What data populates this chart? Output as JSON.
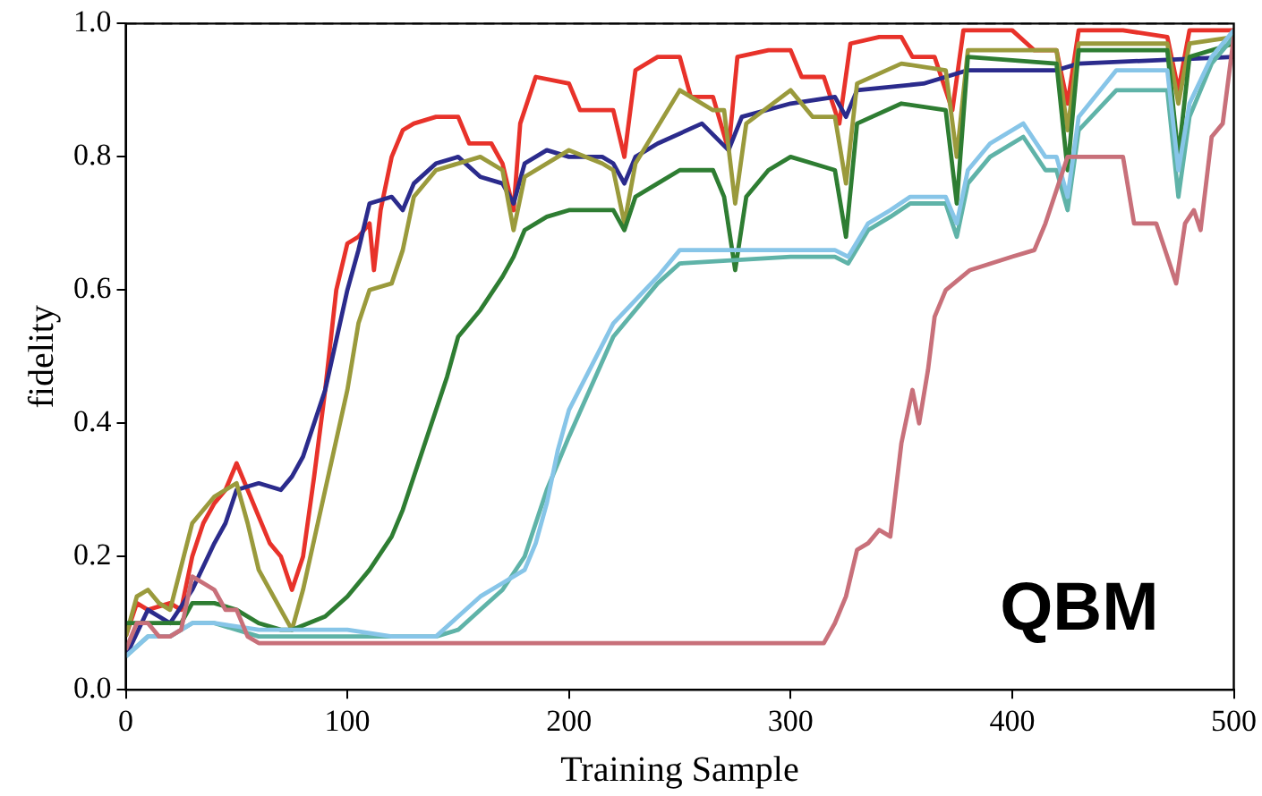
{
  "chart_data": {
    "type": "line",
    "xlabel": "Training Sample",
    "ylabel": "fidelity",
    "xlim": [
      0,
      500
    ],
    "xticks": [
      0,
      100,
      200,
      300,
      400,
      500
    ],
    "ylim": [
      0,
      1
    ],
    "yticks": [
      {
        "value": 0,
        "label": "0.0"
      },
      {
        "value": 0.2,
        "label": "0.2"
      },
      {
        "value": 0.4,
        "label": "0.4"
      },
      {
        "value": 0.6,
        "label": "0.6"
      },
      {
        "value": 0.8,
        "label": "0.8"
      },
      {
        "value": 1,
        "label": "1.0"
      }
    ],
    "grid": false,
    "legend": false,
    "marker": "none",
    "line_style": "solid",
    "annotations": [
      "QBM"
    ],
    "ref_lines": [
      {
        "axis": "y",
        "value": 1,
        "color": "#555555",
        "line_style": "dashed"
      }
    ],
    "series": [
      {
        "color": "#c8707a",
        "x": [
          0,
          5,
          10,
          15,
          20,
          25,
          30,
          35,
          40,
          45,
          50,
          55,
          60,
          100,
          200,
          310,
          315,
          320,
          325,
          330,
          335,
          340,
          345,
          350,
          355,
          358,
          362,
          365,
          370,
          381,
          400,
          410,
          415,
          425,
          444,
          450,
          455,
          465,
          470,
          474,
          478,
          482,
          485,
          490,
          495,
          500
        ],
        "values": [
          0.06,
          0.1,
          0.1,
          0.08,
          0.08,
          0.09,
          0.17,
          0.16,
          0.15,
          0.12,
          0.12,
          0.08,
          0.07,
          0.07,
          0.07,
          0.07,
          0.07,
          0.1,
          0.14,
          0.21,
          0.22,
          0.24,
          0.23,
          0.37,
          0.45,
          0.4,
          0.48,
          0.56,
          0.6,
          0.63,
          0.65,
          0.66,
          0.7,
          0.8,
          0.8,
          0.8,
          0.7,
          0.7,
          0.65,
          0.61,
          0.7,
          0.72,
          0.69,
          0.83,
          0.85,
          0.98
        ]
      },
      {
        "color": "#87c5e8",
        "x": [
          0,
          10,
          20,
          30,
          40,
          60,
          80,
          100,
          120,
          130,
          140,
          150,
          160,
          170,
          180,
          185,
          190,
          195,
          200,
          220,
          240,
          250,
          300,
          320,
          326,
          335,
          345,
          354,
          370,
          375,
          380,
          390,
          405,
          415,
          420,
          425,
          430,
          447,
          470,
          475,
          480,
          490,
          500
        ],
        "values": [
          0.05,
          0.08,
          0.08,
          0.1,
          0.1,
          0.09,
          0.09,
          0.09,
          0.08,
          0.08,
          0.08,
          0.11,
          0.14,
          0.16,
          0.18,
          0.22,
          0.28,
          0.36,
          0.42,
          0.55,
          0.62,
          0.66,
          0.66,
          0.66,
          0.65,
          0.7,
          0.72,
          0.74,
          0.74,
          0.7,
          0.78,
          0.82,
          0.85,
          0.8,
          0.8,
          0.74,
          0.86,
          0.93,
          0.93,
          0.78,
          0.88,
          0.95,
          0.99
        ]
      },
      {
        "color": "#5fb3a8",
        "x": [
          0,
          10,
          20,
          30,
          40,
          60,
          80,
          100,
          120,
          140,
          150,
          160,
          170,
          180,
          190,
          200,
          220,
          240,
          250,
          300,
          320,
          326,
          335,
          345,
          354,
          370,
          375,
          380,
          390,
          405,
          415,
          420,
          425,
          430,
          447,
          470,
          475,
          480,
          490,
          500
        ],
        "values": [
          0.05,
          0.08,
          0.08,
          0.1,
          0.1,
          0.08,
          0.08,
          0.08,
          0.08,
          0.08,
          0.09,
          0.12,
          0.15,
          0.2,
          0.3,
          0.38,
          0.53,
          0.61,
          0.64,
          0.65,
          0.65,
          0.64,
          0.69,
          0.71,
          0.73,
          0.73,
          0.68,
          0.76,
          0.8,
          0.83,
          0.78,
          0.78,
          0.72,
          0.84,
          0.9,
          0.9,
          0.74,
          0.86,
          0.94,
          0.98
        ]
      },
      {
        "color": "#2e7d32",
        "x": [
          0,
          10,
          25,
          30,
          40,
          50,
          60,
          70,
          75,
          90,
          100,
          110,
          120,
          125,
          130,
          140,
          145,
          150,
          160,
          170,
          175,
          180,
          190,
          200,
          215,
          220,
          225,
          230,
          240,
          250,
          265,
          270,
          275,
          280,
          290,
          300,
          310,
          320,
          325,
          330,
          350,
          370,
          375,
          380,
          420,
          425,
          430,
          470,
          475,
          480,
          500
        ],
        "values": [
          0.1,
          0.1,
          0.1,
          0.13,
          0.13,
          0.12,
          0.1,
          0.09,
          0.09,
          0.11,
          0.14,
          0.18,
          0.23,
          0.27,
          0.32,
          0.42,
          0.47,
          0.53,
          0.57,
          0.62,
          0.65,
          0.69,
          0.71,
          0.72,
          0.72,
          0.72,
          0.69,
          0.74,
          0.76,
          0.78,
          0.78,
          0.74,
          0.63,
          0.74,
          0.78,
          0.8,
          0.79,
          0.78,
          0.68,
          0.85,
          0.88,
          0.87,
          0.73,
          0.95,
          0.94,
          0.78,
          0.96,
          0.96,
          0.8,
          0.95,
          0.97
        ]
      },
      {
        "color": "#9a9a3c",
        "x": [
          0,
          5,
          10,
          15,
          20,
          30,
          40,
          45,
          50,
          55,
          60,
          70,
          75,
          80,
          90,
          100,
          105,
          110,
          120,
          125,
          130,
          140,
          160,
          170,
          175,
          180,
          200,
          215,
          220,
          225,
          230,
          250,
          265,
          270,
          275,
          280,
          300,
          310,
          320,
          325,
          330,
          350,
          370,
          375,
          380,
          420,
          425,
          430,
          470,
          475,
          480,
          500
        ],
        "values": [
          0.08,
          0.14,
          0.15,
          0.13,
          0.12,
          0.25,
          0.29,
          0.3,
          0.31,
          0.25,
          0.18,
          0.12,
          0.09,
          0.15,
          0.3,
          0.45,
          0.55,
          0.6,
          0.61,
          0.66,
          0.74,
          0.78,
          0.8,
          0.78,
          0.69,
          0.77,
          0.81,
          0.79,
          0.78,
          0.7,
          0.79,
          0.9,
          0.87,
          0.87,
          0.73,
          0.85,
          0.9,
          0.86,
          0.86,
          0.76,
          0.91,
          0.94,
          0.93,
          0.8,
          0.96,
          0.96,
          0.84,
          0.97,
          0.97,
          0.88,
          0.97,
          0.98
        ]
      },
      {
        "color": "#2b2b8c",
        "x": [
          0,
          10,
          20,
          30,
          40,
          45,
          50,
          60,
          70,
          75,
          80,
          90,
          100,
          105,
          110,
          120,
          125,
          130,
          140,
          150,
          160,
          170,
          175,
          180,
          190,
          200,
          215,
          220,
          225,
          230,
          240,
          260,
          272,
          278,
          300,
          320,
          325,
          330,
          360,
          380,
          400,
          420,
          430,
          500
        ],
        "values": [
          0.05,
          0.12,
          0.1,
          0.15,
          0.22,
          0.25,
          0.3,
          0.31,
          0.3,
          0.32,
          0.35,
          0.45,
          0.6,
          0.66,
          0.73,
          0.74,
          0.72,
          0.76,
          0.79,
          0.8,
          0.77,
          0.76,
          0.73,
          0.79,
          0.81,
          0.8,
          0.8,
          0.79,
          0.76,
          0.8,
          0.82,
          0.85,
          0.81,
          0.86,
          0.88,
          0.89,
          0.86,
          0.9,
          0.91,
          0.93,
          0.93,
          0.93,
          0.94,
          0.95
        ]
      },
      {
        "color": "#e8322a",
        "x": [
          0,
          5,
          10,
          20,
          25,
          30,
          35,
          40,
          45,
          50,
          55,
          60,
          65,
          70,
          75,
          80,
          85,
          90,
          95,
          100,
          105,
          110,
          112,
          115,
          120,
          125,
          130,
          140,
          150,
          155,
          165,
          170,
          175,
          178,
          185,
          200,
          205,
          220,
          225,
          230,
          240,
          250,
          255,
          265,
          272,
          276,
          290,
          300,
          305,
          315,
          322,
          327,
          340,
          350,
          355,
          365,
          373,
          378,
          400,
          410,
          420,
          425,
          430,
          450,
          470,
          475,
          480,
          500
        ],
        "values": [
          0.08,
          0.13,
          0.12,
          0.13,
          0.12,
          0.2,
          0.25,
          0.28,
          0.3,
          0.34,
          0.3,
          0.26,
          0.22,
          0.2,
          0.15,
          0.2,
          0.32,
          0.45,
          0.6,
          0.67,
          0.68,
          0.7,
          0.63,
          0.72,
          0.8,
          0.84,
          0.85,
          0.86,
          0.86,
          0.82,
          0.82,
          0.79,
          0.72,
          0.85,
          0.92,
          0.91,
          0.87,
          0.87,
          0.8,
          0.93,
          0.95,
          0.95,
          0.89,
          0.89,
          0.81,
          0.95,
          0.96,
          0.96,
          0.92,
          0.92,
          0.85,
          0.97,
          0.98,
          0.98,
          0.95,
          0.95,
          0.87,
          0.99,
          0.99,
          0.96,
          0.96,
          0.88,
          0.99,
          0.99,
          0.98,
          0.9,
          0.99,
          0.99
        ]
      }
    ]
  }
}
